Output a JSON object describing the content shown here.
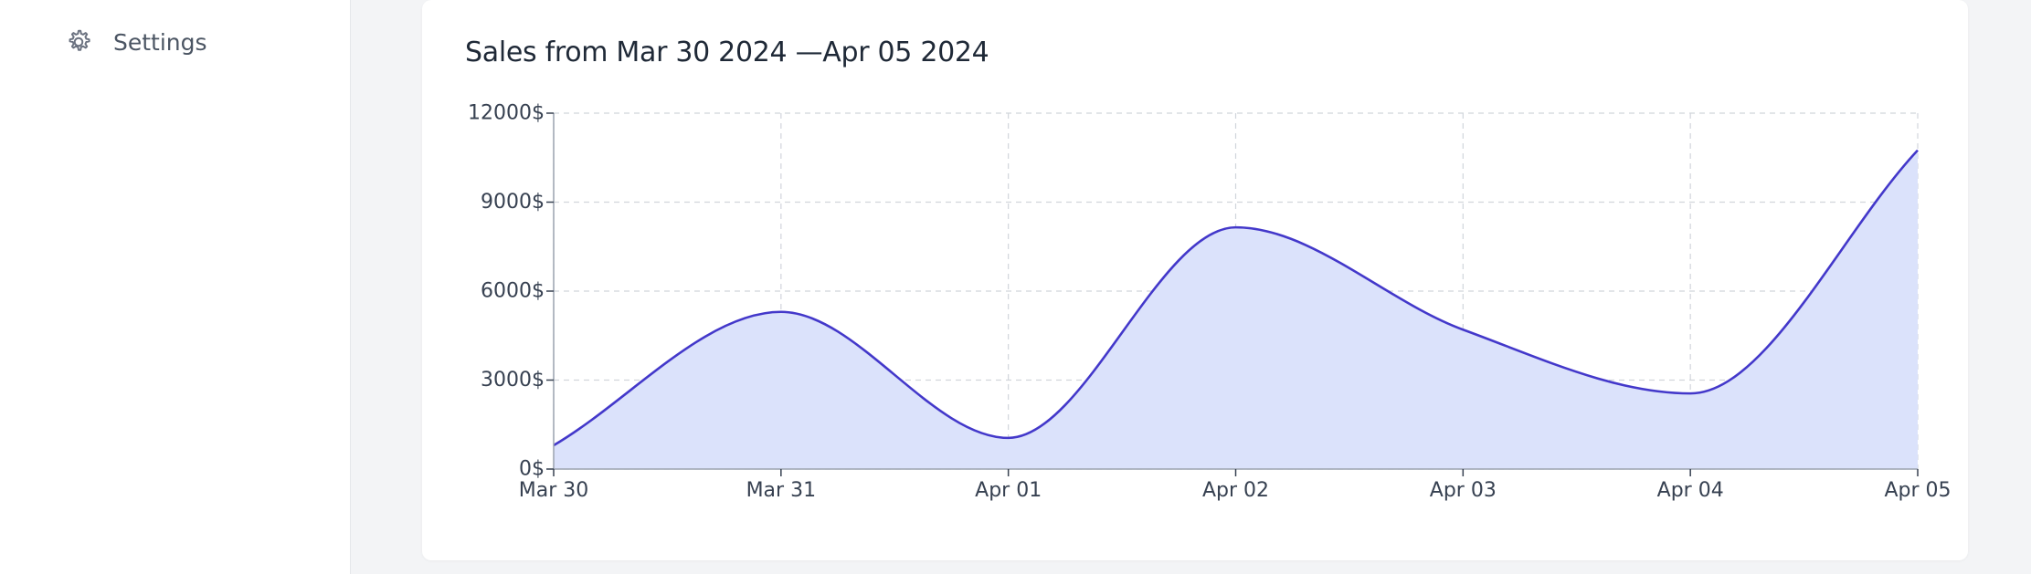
{
  "sidebar": {
    "items": [
      {
        "label": "Settings",
        "icon": "gear-icon"
      }
    ]
  },
  "chart_data": {
    "type": "area",
    "title": "Sales from Mar 30 2024 —Apr 05 2024",
    "categories": [
      "Mar 30",
      "Mar 31",
      "Apr 01",
      "Apr 02",
      "Apr 03",
      "Apr 04",
      "Apr 05"
    ],
    "series": [
      {
        "values": [
          800,
          5300,
          1050,
          8150,
          4700,
          2550,
          10750
        ]
      }
    ],
    "ylim": [
      0,
      12000
    ],
    "yticks": [
      0,
      3000,
      6000,
      9000,
      12000
    ],
    "ytick_labels": [
      "0$",
      "3000$",
      "6000$",
      "9000$",
      "12000$"
    ],
    "xlabel": "",
    "ylabel": "",
    "grid": true,
    "colors": {
      "line": "#4338ca",
      "fill": "#dbe2fb",
      "grid": "#d1d5db",
      "axis": "#9ca3af"
    }
  }
}
